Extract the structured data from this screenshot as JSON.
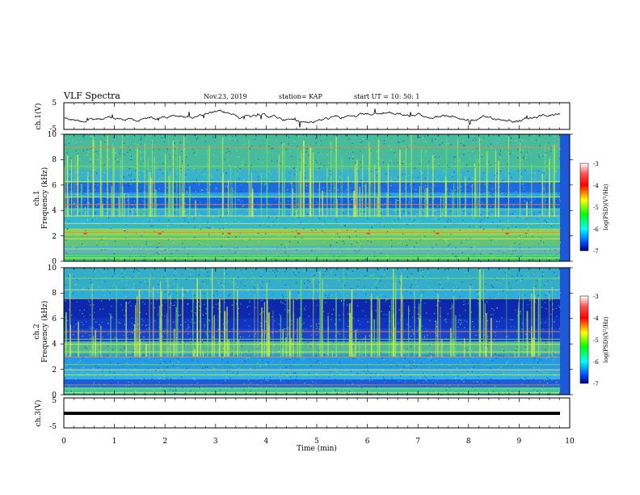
{
  "header": {
    "title": "VLF Spectra",
    "date": "Nov.23, 2019",
    "station": "station= KAP",
    "start": "start  UT =   10: 50: 1"
  },
  "chart_data": [
    {
      "type": "line",
      "panel": "ch1-voltage",
      "ylabel": "ch.1(V)",
      "ylim": [
        -5,
        5
      ],
      "ytick_labels": [
        "5",
        "-5"
      ],
      "xlim": [
        0,
        10
      ]
    },
    {
      "type": "heatmap",
      "panel": "ch1-spectrogram",
      "ylabel_line1": "ch.1",
      "ylabel_line2": "Frequency (kHz)",
      "ylim": [
        0,
        10
      ],
      "ytick_labels": [
        "0",
        "2",
        "4",
        "6",
        "8",
        "10"
      ],
      "xlim": [
        0,
        10
      ],
      "colorbar": {
        "label": "log(PSD)(V²/Hz)",
        "range": [
          -7,
          -3
        ],
        "tick_labels": [
          "-3",
          "-4",
          "-5",
          "-6",
          "-7"
        ]
      }
    },
    {
      "type": "heatmap",
      "panel": "ch2-spectrogram",
      "ylabel_line1": "ch.2",
      "ylabel_line2": "Frequency (kHz)",
      "ylim": [
        0,
        10
      ],
      "ytick_labels": [
        "0",
        "2",
        "4",
        "6",
        "8",
        "10"
      ],
      "xlim": [
        0,
        10
      ],
      "colorbar": {
        "label": "log(PSD)(V²/Hz)",
        "range": [
          -7,
          -3
        ],
        "tick_labels": [
          "-3",
          "-4",
          "-5",
          "-6",
          "-7"
        ]
      }
    },
    {
      "type": "line",
      "panel": "ch3-voltage",
      "ylabel": "ch.3(V)",
      "ylim": [
        -5,
        5
      ],
      "ytick_labels": [
        "5",
        "-5"
      ],
      "xlim": [
        0,
        10
      ],
      "xlabel": "Time  (min)",
      "xtick_labels": [
        "0",
        "1",
        "2",
        "3",
        "4",
        "5",
        "6",
        "7",
        "8",
        "9",
        "10"
      ]
    }
  ],
  "colors": {
    "frame": "#000000",
    "spec_bg_blue": "#1a4fd8",
    "spec_green": "#7fe36a",
    "spec_cyan": "#2ad2e6"
  }
}
